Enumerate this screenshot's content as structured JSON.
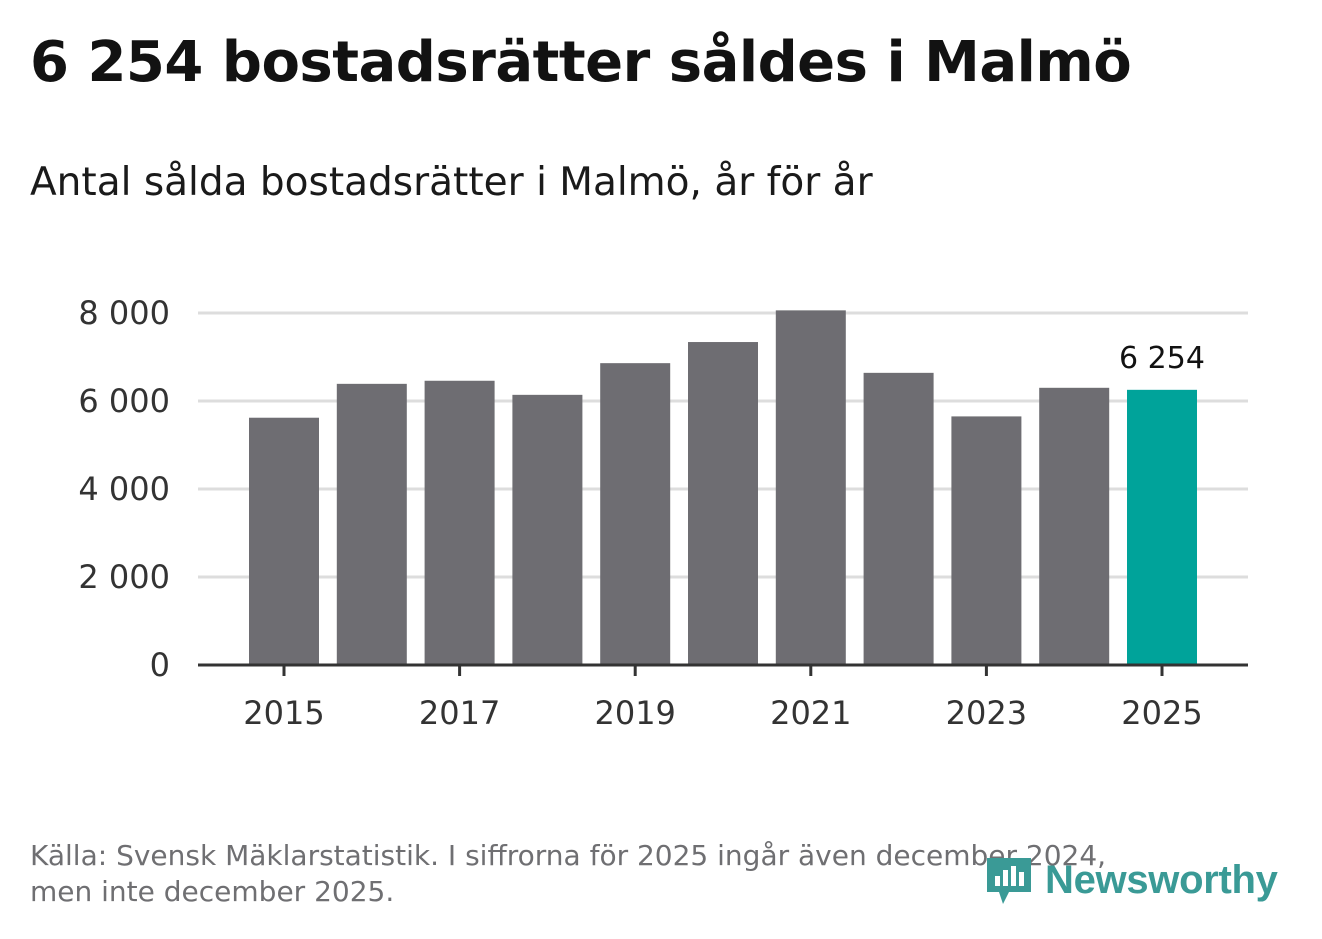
{
  "headline": "6 254 bostadsrätter såldes i Malmö",
  "subtitle": "Antal sålda bostadsrätter i Malmö, år för år",
  "footer": {
    "line1": "Källa: Svensk Mäklarstatistik. I siffrorna för 2025 ingår även december 2024,",
    "line2": "men inte december 2025."
  },
  "brand": {
    "name": "Newsworthy",
    "icon": "newsworthy-logo-icon",
    "color": "#3a9a96"
  },
  "colors": {
    "bar_default": "#6e6d72",
    "bar_highlight": "#00a39a",
    "grid": "#dddddd",
    "axis": "#333333"
  },
  "chart_data": {
    "type": "bar",
    "title": "Antal sålda bostadsrätter i Malmö, år för år",
    "xlabel": "",
    "ylabel": "",
    "categories": [
      "2015",
      "2016",
      "2017",
      "2018",
      "2019",
      "2020",
      "2021",
      "2022",
      "2023",
      "2024",
      "2025"
    ],
    "values": [
      5620,
      6390,
      6460,
      6140,
      6860,
      7340,
      8060,
      6640,
      5650,
      6300,
      6254
    ],
    "highlight_index": 10,
    "data_labels": [
      {
        "index": 10,
        "text": "6 254"
      }
    ],
    "x_tick_labels": [
      "2015",
      "2017",
      "2019",
      "2021",
      "2023",
      "2025"
    ],
    "y_tick_values": [
      0,
      2000,
      4000,
      6000,
      8000
    ],
    "y_tick_labels": [
      "0",
      "2 000",
      "4 000",
      "6 000",
      "8 000"
    ],
    "ylim": [
      0,
      8000
    ],
    "grid": true
  }
}
